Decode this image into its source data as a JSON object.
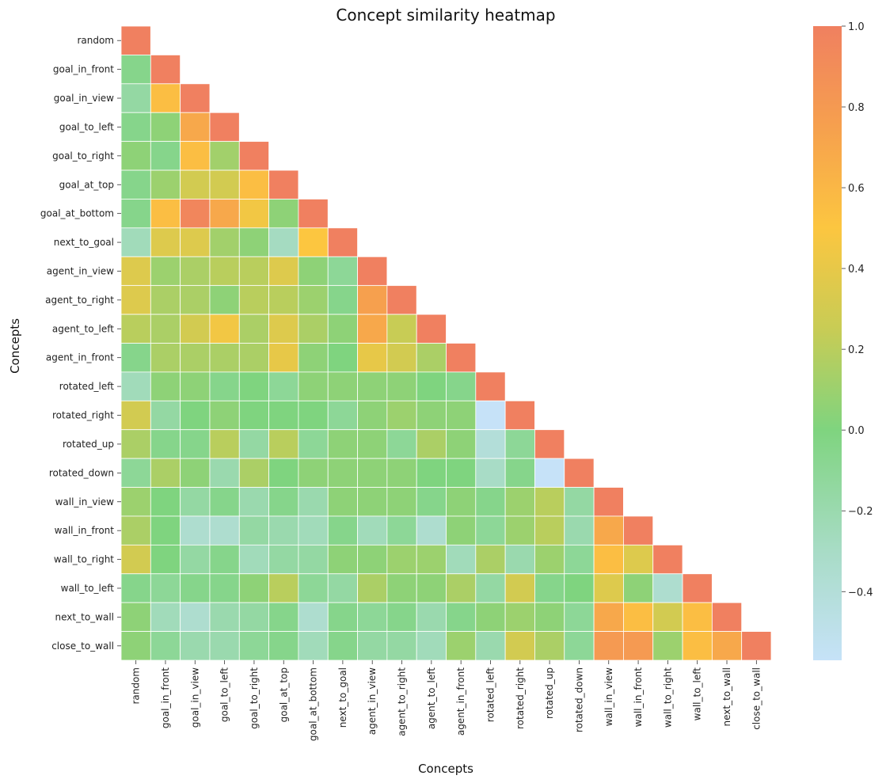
{
  "chart_data": {
    "type": "heatmap",
    "title": "Concept similarity heatmap",
    "xlabel": "Concepts",
    "ylabel": "Concepts",
    "labels": [
      "random",
      "goal_in_front",
      "goal_in_view",
      "goal_to_left",
      "goal_to_right",
      "goal_at_top",
      "goal_at_bottom",
      "next_to_goal",
      "agent_in_view",
      "agent_to_right",
      "agent_to_left",
      "agent_in_front",
      "rotated_left",
      "rotated_right",
      "rotated_up",
      "rotated_down",
      "wall_in_view",
      "wall_in_front",
      "wall_to_right",
      "wall_to_left",
      "next_to_wall",
      "close_to_wall"
    ],
    "mask": "upper triangle (cells above the diagonal are blank)",
    "values": [
      [
        1.0
      ],
      [
        -0.05,
        1.0
      ],
      [
        -0.15,
        0.55,
        1.0
      ],
      [
        -0.05,
        0.05,
        0.7,
        1.0
      ],
      [
        0.05,
        -0.05,
        0.55,
        0.12,
        1.0
      ],
      [
        -0.05,
        0.1,
        0.3,
        0.3,
        0.55,
        1.0
      ],
      [
        -0.05,
        0.55,
        0.95,
        0.7,
        0.45,
        0.05,
        1.0
      ],
      [
        -0.25,
        0.35,
        0.35,
        0.12,
        0.05,
        -0.28,
        0.5,
        1.0
      ],
      [
        0.35,
        0.1,
        0.15,
        0.2,
        0.2,
        0.35,
        0.05,
        -0.1,
        1.0
      ],
      [
        0.35,
        0.15,
        0.15,
        0.05,
        0.2,
        0.2,
        0.1,
        -0.05,
        0.75,
        1.0
      ],
      [
        0.2,
        0.15,
        0.3,
        0.45,
        0.15,
        0.35,
        0.15,
        0.05,
        0.7,
        0.25,
        1.0
      ],
      [
        -0.05,
        0.15,
        0.15,
        0.15,
        0.15,
        0.4,
        0.05,
        0.0,
        0.4,
        0.3,
        0.15,
        1.0
      ],
      [
        -0.25,
        0.05,
        0.05,
        -0.05,
        0.0,
        -0.1,
        0.05,
        0.05,
        0.05,
        0.05,
        0.0,
        -0.05,
        1.0
      ],
      [
        0.3,
        -0.15,
        0.0,
        0.05,
        0.0,
        0.0,
        0.0,
        -0.1,
        0.05,
        0.1,
        0.05,
        0.05,
        -0.57,
        1.0
      ],
      [
        0.15,
        -0.05,
        -0.05,
        0.2,
        -0.15,
        0.2,
        -0.1,
        0.05,
        0.05,
        -0.1,
        0.15,
        0.05,
        -0.4,
        -0.1,
        1.0
      ],
      [
        -0.1,
        0.15,
        0.05,
        -0.2,
        0.15,
        0.0,
        0.05,
        0.05,
        0.05,
        0.05,
        0.0,
        0.0,
        -0.3,
        -0.05,
        -0.57,
        1.0
      ],
      [
        0.1,
        0.0,
        -0.15,
        -0.05,
        -0.2,
        -0.05,
        -0.2,
        0.05,
        0.05,
        0.05,
        -0.05,
        0.05,
        -0.05,
        0.1,
        0.2,
        -0.15,
        1.0
      ],
      [
        0.15,
        0.0,
        -0.35,
        -0.35,
        -0.15,
        -0.2,
        -0.25,
        -0.05,
        -0.25,
        -0.1,
        -0.35,
        0.05,
        -0.1,
        0.1,
        0.2,
        -0.2,
        0.7,
        1.0
      ],
      [
        0.3,
        0.0,
        -0.15,
        -0.05,
        -0.25,
        -0.15,
        -0.15,
        0.05,
        0.05,
        0.1,
        0.1,
        -0.25,
        0.15,
        -0.2,
        0.1,
        -0.1,
        0.55,
        0.35,
        1.0
      ],
      [
        -0.05,
        -0.1,
        -0.05,
        -0.05,
        0.05,
        0.2,
        -0.1,
        -0.15,
        0.15,
        0.05,
        0.05,
        0.15,
        -0.15,
        0.3,
        -0.05,
        0.0,
        0.35,
        0.05,
        -0.35,
        1.0
      ],
      [
        0.05,
        -0.25,
        -0.35,
        -0.2,
        -0.15,
        -0.05,
        -0.35,
        -0.05,
        -0.1,
        -0.05,
        -0.2,
        -0.05,
        0.05,
        0.1,
        0.05,
        -0.1,
        0.7,
        0.55,
        0.3,
        0.55,
        1.0
      ],
      [
        0.05,
        -0.1,
        -0.2,
        -0.2,
        -0.1,
        -0.05,
        -0.25,
        -0.05,
        -0.15,
        -0.15,
        -0.25,
        0.1,
        -0.2,
        0.3,
        0.15,
        -0.1,
        0.8,
        0.8,
        0.1,
        0.55,
        0.7,
        1.0
      ]
    ],
    "vmin": -0.57,
    "vmax": 1.0,
    "colorbar_ticks": [
      1.0,
      0.8,
      0.6,
      0.4,
      0.2,
      0.0,
      -0.2,
      -0.4
    ],
    "colorbar_tick_labels": [
      "1.0",
      "0.8",
      "0.6",
      "0.4",
      "0.2",
      "0.0",
      "−0.2",
      "−0.4"
    ],
    "colormap_stops": [
      {
        "v": -0.57,
        "color": "#c6e2f8"
      },
      {
        "v": -0.3,
        "color": "#a8dcc6"
      },
      {
        "v": 0.0,
        "color": "#7fd47f"
      },
      {
        "v": 0.25,
        "color": "#c8cc55"
      },
      {
        "v": 0.5,
        "color": "#fcc640"
      },
      {
        "v": 0.75,
        "color": "#f6a04e"
      },
      {
        "v": 1.0,
        "color": "#f08060"
      }
    ],
    "grid_line_color": "#ffffff",
    "legend": "colorbar right"
  }
}
